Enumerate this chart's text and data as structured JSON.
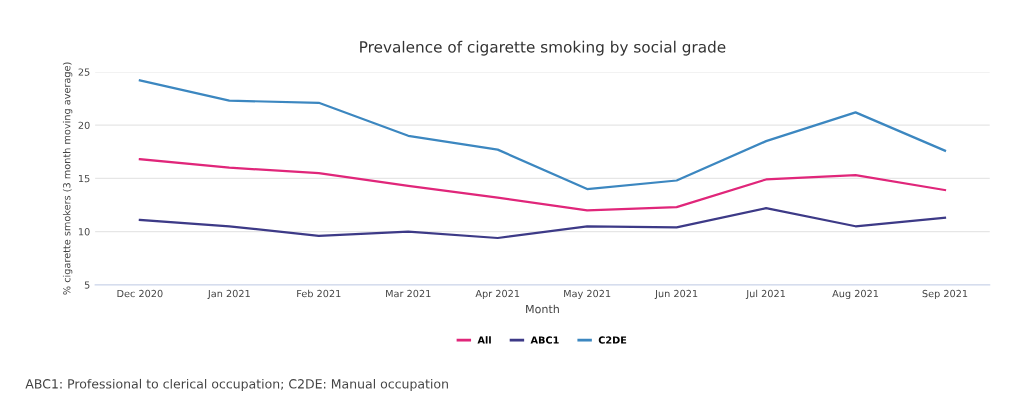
{
  "chart_data": {
    "type": "line",
    "title": "Prevalence of cigarette smoking by social grade",
    "xlabel": "Month",
    "ylabel": "% cigarette smokers (3 month moving average)",
    "categories": [
      "Dec 2020",
      "Jan 2021",
      "Feb 2021",
      "Mar 2021",
      "Apr 2021",
      "May 2021",
      "Jun 2021",
      "Jul 2021",
      "Aug 2021",
      "Sep 2021"
    ],
    "series": [
      {
        "name": "All",
        "color": "#e0267a",
        "values": [
          16.8,
          16.0,
          15.5,
          14.3,
          13.2,
          12.0,
          12.3,
          14.9,
          15.3,
          13.9
        ]
      },
      {
        "name": "ABC1",
        "color": "#3d3a87",
        "values": [
          11.1,
          10.5,
          9.6,
          10.0,
          9.4,
          10.5,
          10.4,
          12.2,
          10.5,
          11.3
        ]
      },
      {
        "name": "C2DE",
        "color": "#3c87c0",
        "values": [
          24.2,
          22.3,
          22.1,
          19.0,
          17.7,
          14.0,
          14.8,
          18.5,
          21.2,
          17.6
        ]
      }
    ],
    "ylim": [
      5,
      25
    ],
    "yticks": [
      5,
      10,
      15,
      20,
      25
    ],
    "grid": "y",
    "legend": "bottom",
    "marker": "none",
    "line_style": "solid",
    "annotations": [
      "ABC1: Professional to clerical occupation; C2DE: Manual occupation"
    ]
  }
}
